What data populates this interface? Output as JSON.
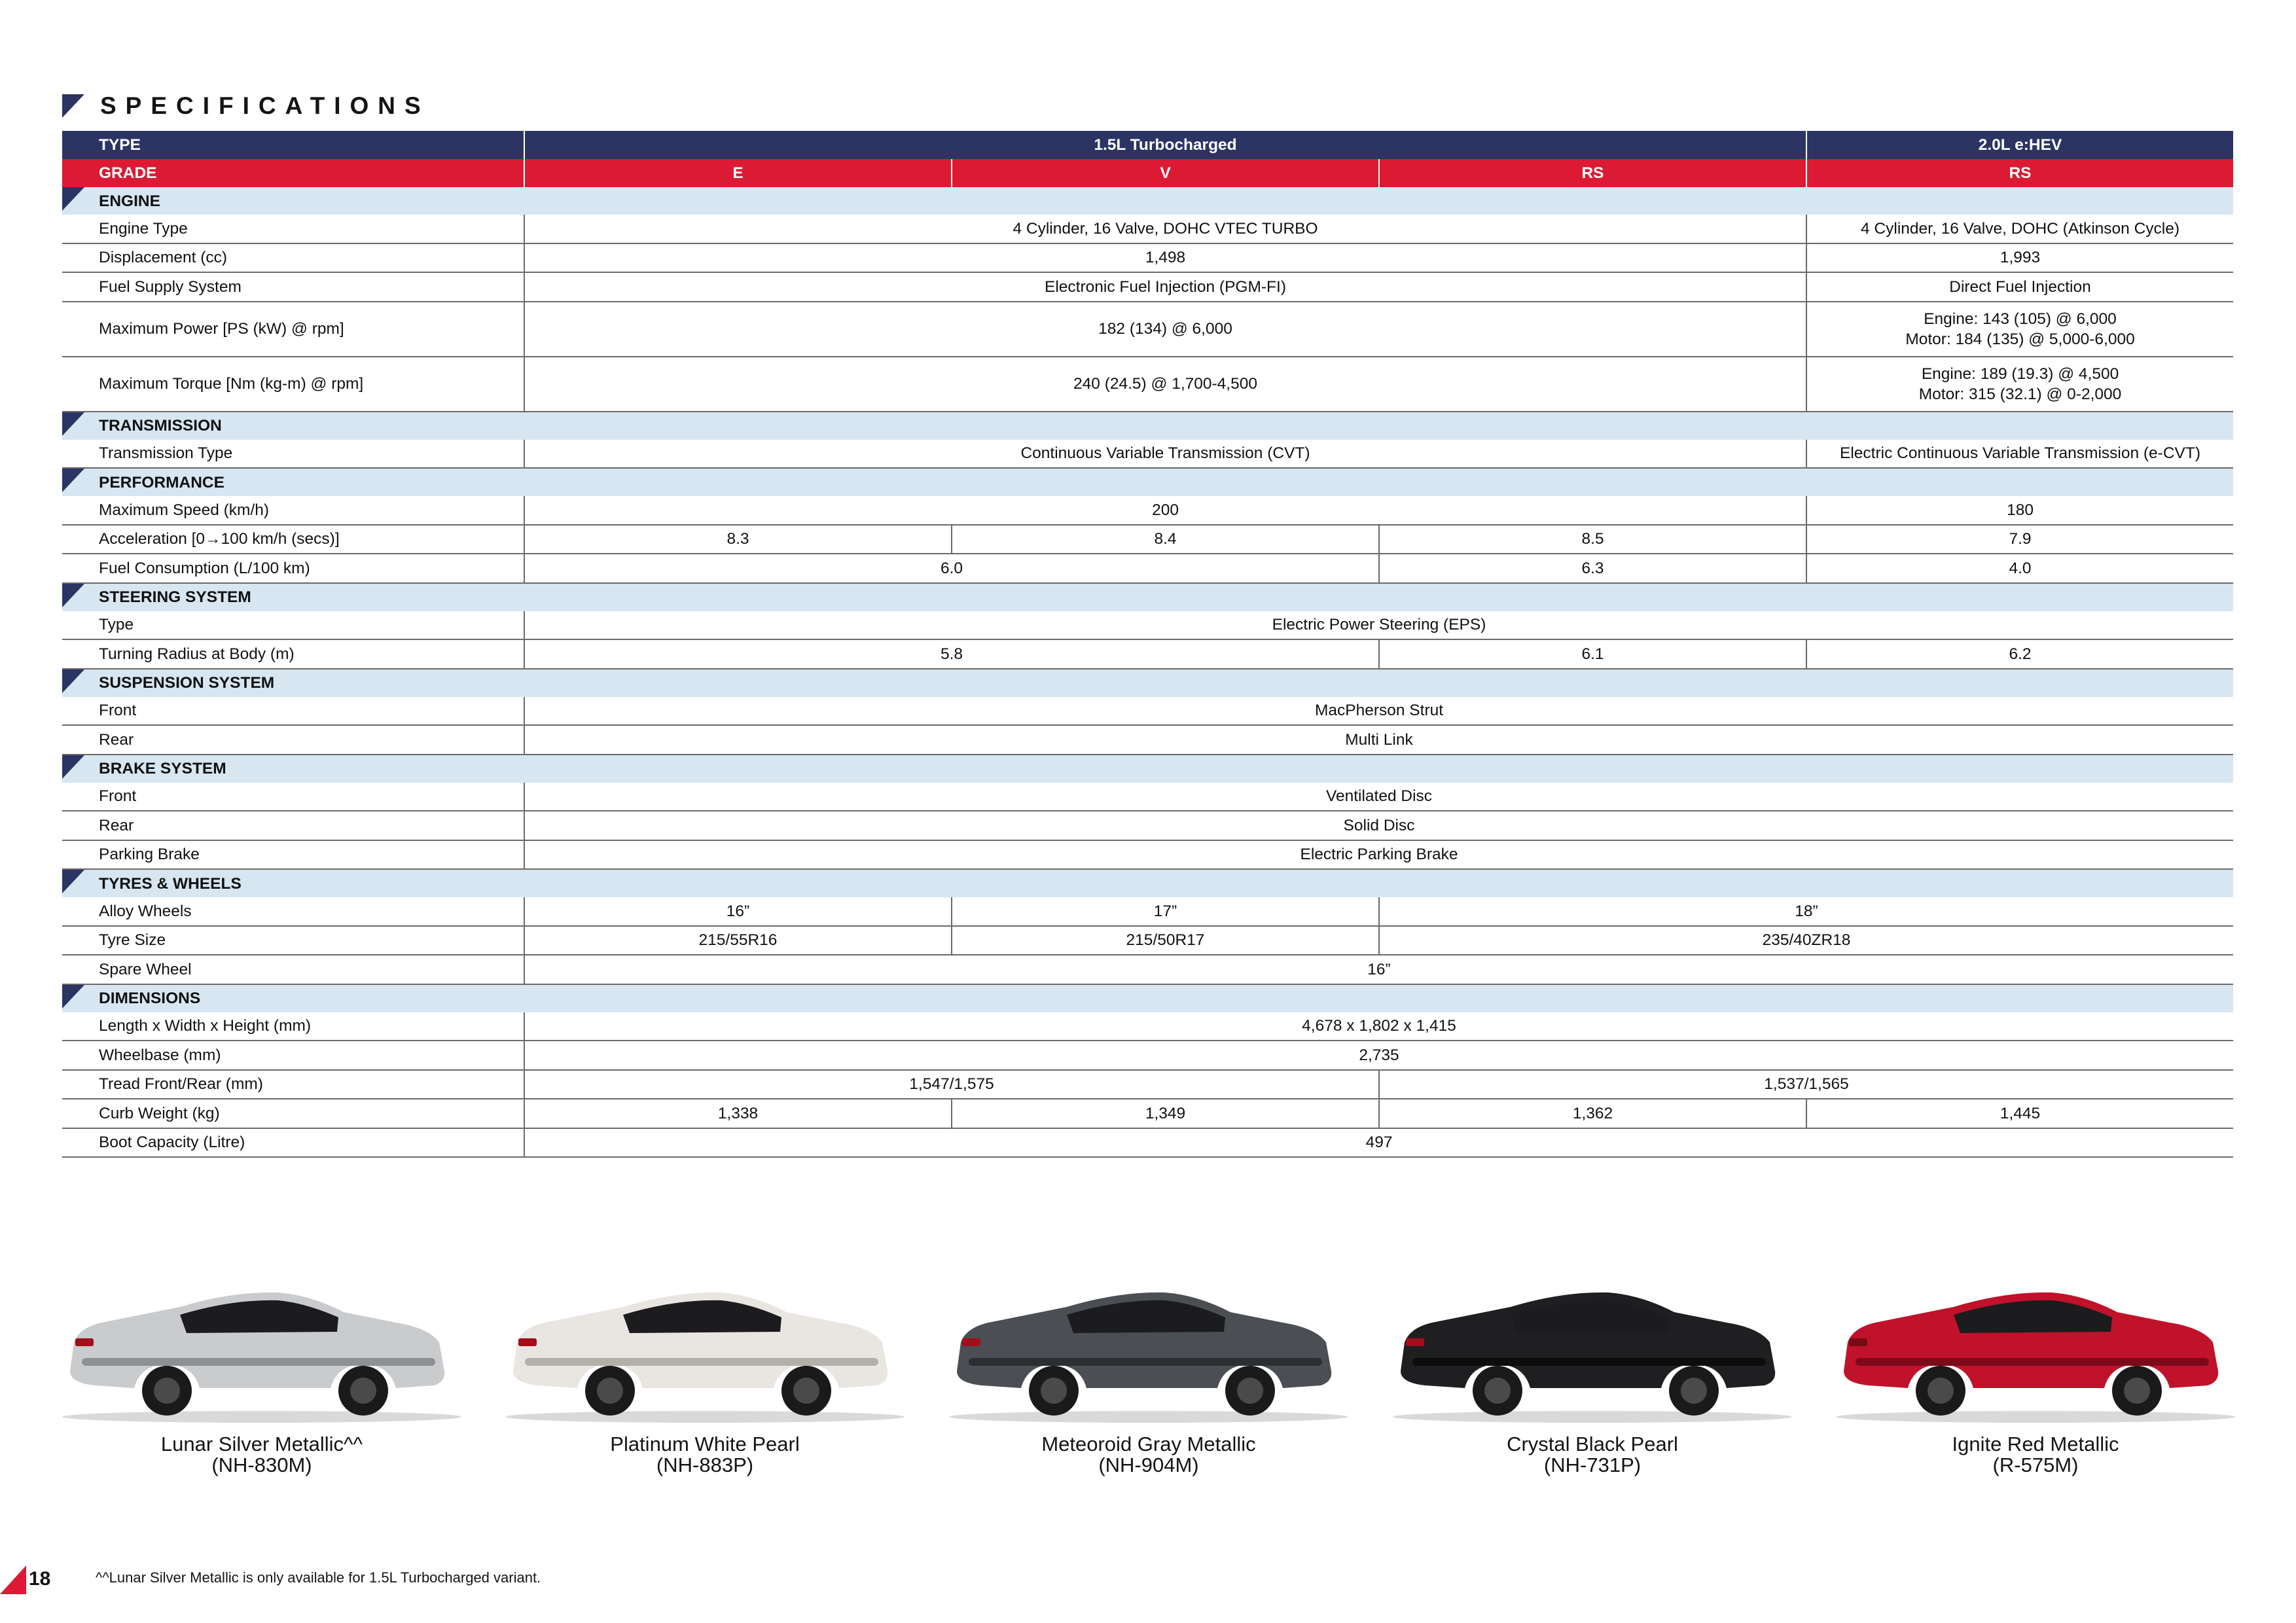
{
  "title": "SPECIFICATIONS",
  "header": {
    "type_label": "TYPE",
    "type_turbo": "1.5L Turbocharged",
    "type_hev": "2.0L e:HEV",
    "grade_label": "GRADE",
    "grades": [
      "E",
      "V",
      "RS",
      "RS"
    ]
  },
  "sections": {
    "engine": "ENGINE",
    "transmission": "TRANSMISSION",
    "performance": "PERFORMANCE",
    "steering": "STEERING SYSTEM",
    "suspension": "SUSPENSION SYSTEM",
    "brake": "BRAKE SYSTEM",
    "tyres": "TYRES & WHEELS",
    "dimensions": "DIMENSIONS"
  },
  "rows": {
    "engine_type": {
      "label": "Engine Type",
      "turbo": "4 Cylinder, 16 Valve, DOHC VTEC TURBO",
      "hev": "4 Cylinder, 16 Valve, DOHC (Atkinson Cycle)"
    },
    "displacement": {
      "label": "Displacement (cc)",
      "turbo": "1,498",
      "hev": "1,993"
    },
    "fuel_supply": {
      "label": "Fuel Supply System",
      "turbo": "Electronic Fuel Injection (PGM-FI)",
      "hev": "Direct Fuel Injection"
    },
    "max_power": {
      "label": "Maximum Power [PS (kW) @ rpm]",
      "turbo": "182 (134) @ 6,000",
      "hev_1": "Engine: 143 (105) @ 6,000",
      "hev_2": "Motor: 184 (135) @ 5,000-6,000"
    },
    "max_torque": {
      "label": "Maximum Torque [Nm (kg-m) @ rpm]",
      "turbo": "240 (24.5) @ 1,700-4,500",
      "hev_1": "Engine: 189 (19.3) @ 4,500",
      "hev_2": "Motor: 315 (32.1) @ 0-2,000"
    },
    "transmission_type": {
      "label": "Transmission Type",
      "turbo": "Continuous Variable Transmission (CVT)",
      "hev": "Electric Continuous Variable Transmission (e-CVT)"
    },
    "max_speed": {
      "label": "Maximum Speed (km/h)",
      "turbo": "200",
      "hev": "180"
    },
    "acceleration": {
      "label": "Acceleration [0→100 km/h (secs)]",
      "e": "8.3",
      "v": "8.4",
      "rs": "8.5",
      "hev": "7.9"
    },
    "fuel_consumption": {
      "label": "Fuel Consumption (L/100 km)",
      "ev": "6.0",
      "rs": "6.3",
      "hev": "4.0"
    },
    "steering_type": {
      "label": "Type",
      "all": "Electric Power Steering (EPS)"
    },
    "turning_radius": {
      "label": "Turning Radius at Body (m)",
      "ev": "5.8",
      "rs": "6.1",
      "hev": "6.2"
    },
    "susp_front": {
      "label": "Front",
      "all": "MacPherson Strut"
    },
    "susp_rear": {
      "label": "Rear",
      "all": "Multi Link"
    },
    "brake_front": {
      "label": "Front",
      "all": "Ventilated Disc"
    },
    "brake_rear": {
      "label": "Rear",
      "all": "Solid Disc"
    },
    "parking_brake": {
      "label": "Parking Brake",
      "all": "Electric Parking Brake"
    },
    "alloy_wheels": {
      "label": "Alloy Wheels",
      "e": "16”",
      "v": "17”",
      "rs_hev": "18”"
    },
    "tyre_size": {
      "label": "Tyre Size",
      "e": "215/55R16",
      "v": "215/50R17",
      "rs_hev": "235/40ZR18"
    },
    "spare_wheel": {
      "label": "Spare Wheel",
      "all": "16”"
    },
    "lwh": {
      "label": "Length x Width x Height (mm)",
      "all": "4,678 x 1,802 x 1,415"
    },
    "wheelbase": {
      "label": "Wheelbase (mm)",
      "all": "2,735"
    },
    "tread": {
      "label": "Tread Front/Rear (mm)",
      "ev": "1,547/1,575",
      "rs_hev": "1,537/1,565"
    },
    "curb_weight": {
      "label": "Curb Weight (kg)",
      "e": "1,338",
      "v": "1,349",
      "rs": "1,362",
      "hev": "1,445"
    },
    "boot": {
      "label": "Boot Capacity (Litre)",
      "all": "497"
    }
  },
  "colors": [
    {
      "name": "Lunar Silver Metallic^^",
      "code": "(NH-830M)",
      "body": "#c9cbcd",
      "shade": "#8e9194"
    },
    {
      "name": "Platinum White Pearl",
      "code": "(NH-883P)",
      "body": "#e9e6e1",
      "shade": "#b3afa9"
    },
    {
      "name": "Meteoroid Gray Metallic",
      "code": "(NH-904M)",
      "body": "#4b4f53",
      "shade": "#2c2f32"
    },
    {
      "name": "Crystal Black Pearl",
      "code": "(NH-731P)",
      "body": "#1f1f21",
      "shade": "#0d0d0e"
    },
    {
      "name": "Ignite Red Metallic",
      "code": "(R-575M)",
      "body": "#c0122a",
      "shade": "#7d0a1a"
    }
  ],
  "page_number": "18",
  "footnote": "^^Lunar Silver Metallic is only available for 1.5L Turbocharged variant.",
  "accent_colors": {
    "navy": "#2c3464",
    "red": "#dc1a33",
    "section": "#d7e6f1"
  }
}
